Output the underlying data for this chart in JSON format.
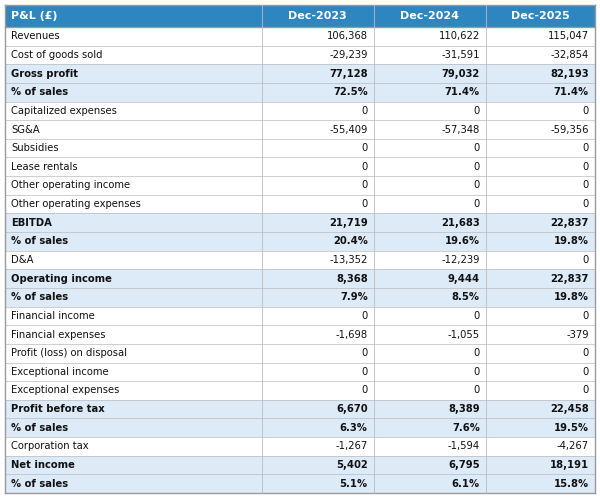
{
  "header": [
    "P&L (£)",
    "Dec-2023",
    "Dec-2024",
    "Dec-2025"
  ],
  "rows": [
    {
      "label": "Revenues",
      "values": [
        "106,368",
        "110,622",
        "115,047"
      ],
      "bold": false,
      "shaded": false
    },
    {
      "label": "Cost of goods sold",
      "values": [
        "-29,239",
        "-31,591",
        "-32,854"
      ],
      "bold": false,
      "shaded": false
    },
    {
      "label": "Gross profit",
      "values": [
        "77,128",
        "79,032",
        "82,193"
      ],
      "bold": true,
      "shaded": true
    },
    {
      "label": "% of sales",
      "values": [
        "72.5%",
        "71.4%",
        "71.4%"
      ],
      "bold": true,
      "shaded": true
    },
    {
      "label": "Capitalized expenses",
      "values": [
        "0",
        "0",
        "0"
      ],
      "bold": false,
      "shaded": false
    },
    {
      "label": "SG&A",
      "values": [
        "-55,409",
        "-57,348",
        "-59,356"
      ],
      "bold": false,
      "shaded": false
    },
    {
      "label": "Subsidies",
      "values": [
        "0",
        "0",
        "0"
      ],
      "bold": false,
      "shaded": false
    },
    {
      "label": "Lease rentals",
      "values": [
        "0",
        "0",
        "0"
      ],
      "bold": false,
      "shaded": false
    },
    {
      "label": "Other operating income",
      "values": [
        "0",
        "0",
        "0"
      ],
      "bold": false,
      "shaded": false
    },
    {
      "label": "Other operating expenses",
      "values": [
        "0",
        "0",
        "0"
      ],
      "bold": false,
      "shaded": false
    },
    {
      "label": "EBITDA",
      "values": [
        "21,719",
        "21,683",
        "22,837"
      ],
      "bold": true,
      "shaded": true
    },
    {
      "label": "% of sales",
      "values": [
        "20.4%",
        "19.6%",
        "19.8%"
      ],
      "bold": true,
      "shaded": true
    },
    {
      "label": "D&A",
      "values": [
        "-13,352",
        "-12,239",
        "0"
      ],
      "bold": false,
      "shaded": false
    },
    {
      "label": "Operating income",
      "values": [
        "8,368",
        "9,444",
        "22,837"
      ],
      "bold": true,
      "shaded": true
    },
    {
      "label": "% of sales",
      "values": [
        "7.9%",
        "8.5%",
        "19.8%"
      ],
      "bold": true,
      "shaded": true
    },
    {
      "label": "Financial income",
      "values": [
        "0",
        "0",
        "0"
      ],
      "bold": false,
      "shaded": false
    },
    {
      "label": "Financial expenses",
      "values": [
        "-1,698",
        "-1,055",
        "-379"
      ],
      "bold": false,
      "shaded": false
    },
    {
      "label": "Profit (loss) on disposal",
      "values": [
        "0",
        "0",
        "0"
      ],
      "bold": false,
      "shaded": false
    },
    {
      "label": "Exceptional income",
      "values": [
        "0",
        "0",
        "0"
      ],
      "bold": false,
      "shaded": false
    },
    {
      "label": "Exceptional expenses",
      "values": [
        "0",
        "0",
        "0"
      ],
      "bold": false,
      "shaded": false
    },
    {
      "label": "Profit before tax",
      "values": [
        "6,670",
        "8,389",
        "22,458"
      ],
      "bold": true,
      "shaded": true
    },
    {
      "label": "% of sales",
      "values": [
        "6.3%",
        "7.6%",
        "19.5%"
      ],
      "bold": true,
      "shaded": true
    },
    {
      "label": "Corporation tax",
      "values": [
        "-1,267",
        "-1,594",
        "-4,267"
      ],
      "bold": false,
      "shaded": false
    },
    {
      "label": "Net income",
      "values": [
        "5,402",
        "6,795",
        "18,191"
      ],
      "bold": true,
      "shaded": true
    },
    {
      "label": "% of sales",
      "values": [
        "5.1%",
        "6.1%",
        "15.8%"
      ],
      "bold": true,
      "shaded": true
    }
  ],
  "header_bg": "#2e86c1",
  "header_text_color": "#ffffff",
  "shaded_bg": "#ddeaf7",
  "normal_bg": "#ffffff",
  "border_color": "#bbbbbb",
  "text_color": "#111111",
  "fig_width": 6.0,
  "fig_height": 5.03,
  "dpi": 100,
  "font_size": 7.2,
  "header_font_size": 8.0
}
